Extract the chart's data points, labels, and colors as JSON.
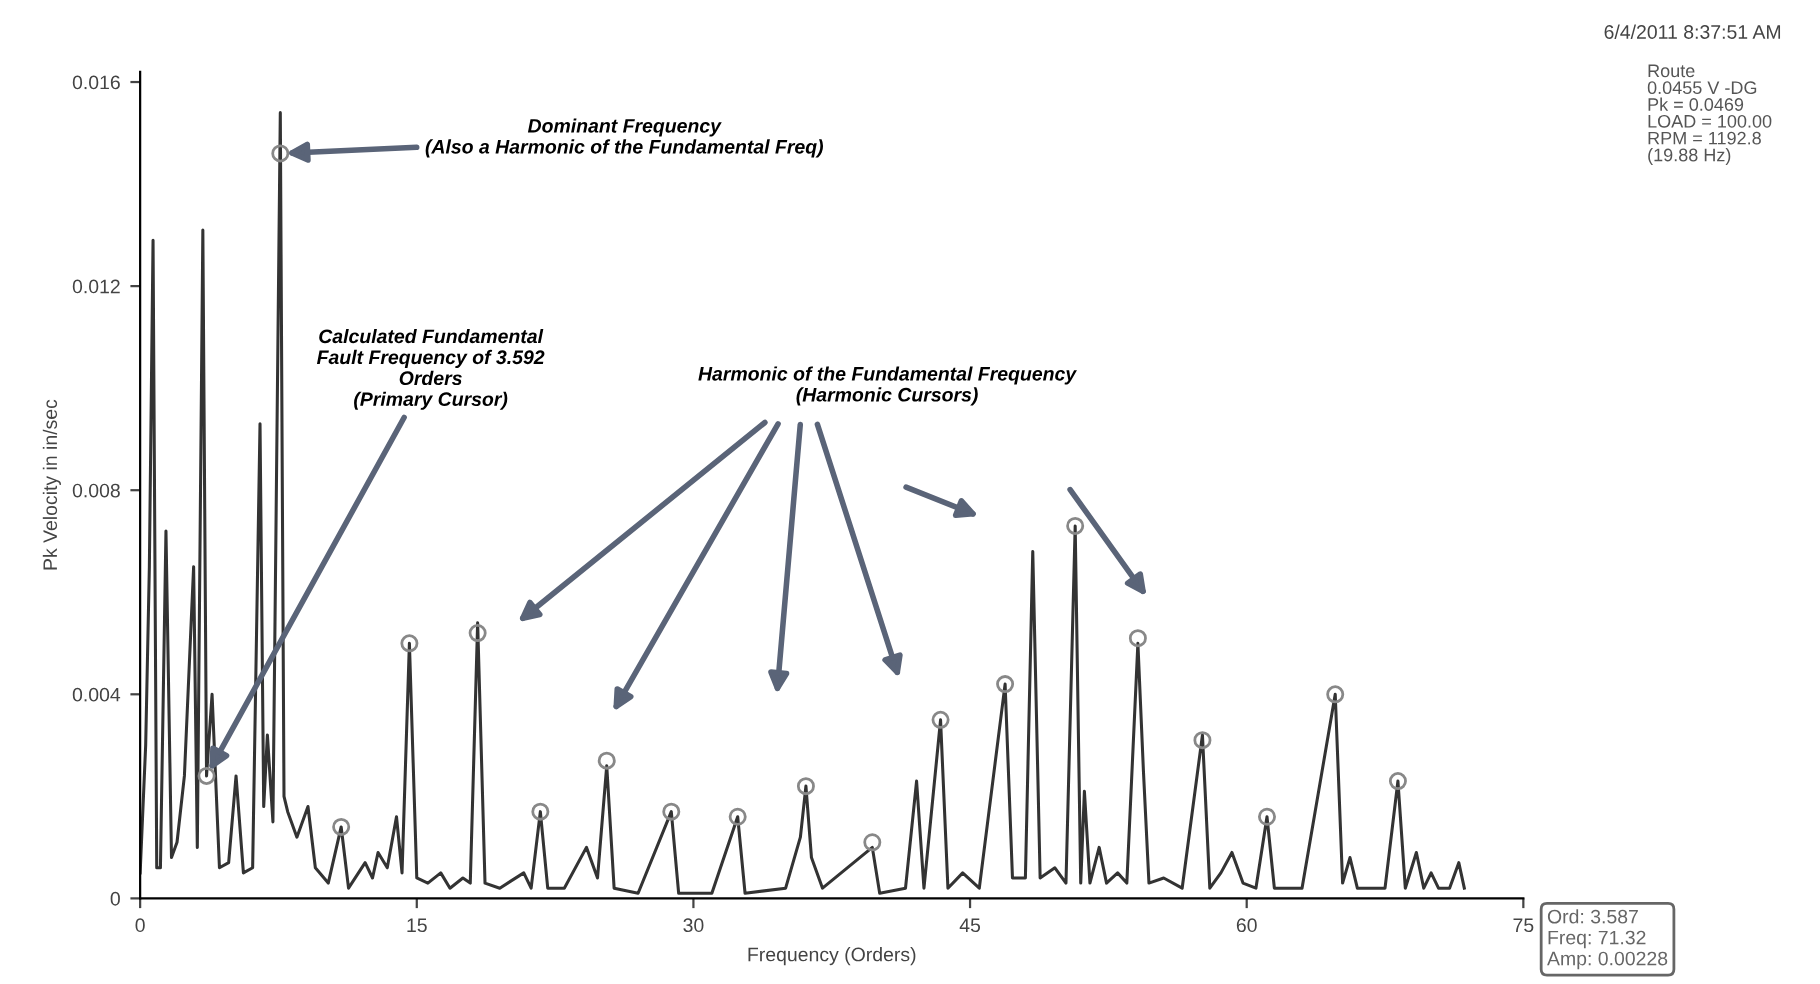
{
  "chart_data": {
    "type": "line",
    "xlabel": "Frequency (Orders)",
    "ylabel": "Pk Velocity in in/sec",
    "xlim": [
      0,
      75
    ],
    "ylim": [
      0,
      0.0162
    ],
    "xticks": [
      0,
      15,
      30,
      45,
      60,
      75
    ],
    "yticks": [
      0,
      0.004,
      0.008,
      0.012,
      0.016
    ],
    "grid": false,
    "series": [
      {
        "color": "#333333",
        "marker": "none",
        "x": [
          0,
          0.3,
          0.5,
          0.7,
          0.9,
          1.1,
          1.4,
          1.7,
          2.0,
          2.4,
          2.9,
          3.1,
          3.4,
          3.6,
          3.9,
          4.3,
          4.8,
          5.2,
          5.6,
          6.1,
          6.5,
          6.7,
          6.9,
          7.2,
          7.6,
          7.8,
          8.0,
          8.5,
          9.1,
          9.5,
          10.2,
          10.9,
          11.3,
          12.2,
          12.6,
          12.9,
          13.4,
          13.9,
          14.2,
          14.6,
          15.0,
          15.6,
          16.3,
          16.8,
          17.5,
          17.9,
          18.3,
          18.7,
          19.5,
          20.8,
          21.2,
          21.7,
          22.1,
          23.0,
          24.2,
          24.8,
          25.3,
          25.7,
          27.0,
          28.8,
          29.2,
          31.0,
          32.4,
          32.8,
          35.0,
          35.8,
          36.1,
          36.4,
          37.0,
          39.7,
          40.1,
          41.5,
          42.1,
          42.5,
          43.4,
          43.8,
          44.6,
          45.5,
          46.9,
          47.3,
          48.0,
          48.4,
          48.8,
          49.6,
          50.2,
          50.7,
          51.0,
          51.2,
          51.5,
          52.0,
          52.4,
          53.0,
          53.5,
          54.1,
          54.4,
          54.7,
          55.5,
          56.5,
          57.6,
          58.0,
          58.6,
          59.2,
          59.8,
          60.5,
          61.1,
          61.5,
          63.0,
          64.8,
          65.2,
          65.6,
          66.0,
          67.5,
          68.2,
          68.6,
          69.2,
          69.6,
          70.0,
          70.4,
          71.0,
          71.5,
          71.8
        ],
        "values": [
          0.0005,
          0.003,
          0.0065,
          0.0129,
          0.0006,
          0.0006,
          0.0072,
          0.0008,
          0.0011,
          0.0024,
          0.0065,
          0.001,
          0.0131,
          0.0024,
          0.004,
          0.0006,
          0.0007,
          0.0024,
          0.0005,
          0.0006,
          0.0093,
          0.0018,
          0.0032,
          0.0015,
          0.0154,
          0.002,
          0.0017,
          0.0012,
          0.0018,
          0.0006,
          0.0003,
          0.0014,
          0.0002,
          0.0007,
          0.0004,
          0.0009,
          0.0006,
          0.0016,
          0.0005,
          0.005,
          0.0004,
          0.0003,
          0.0005,
          0.0002,
          0.0004,
          0.0003,
          0.0054,
          0.0003,
          0.0002,
          0.0005,
          0.0002,
          0.0017,
          0.0002,
          0.0002,
          0.001,
          0.0004,
          0.0026,
          0.0002,
          0.0001,
          0.0017,
          0.0001,
          0.0001,
          0.0016,
          0.0001,
          0.0002,
          0.0012,
          0.0022,
          0.0008,
          0.0002,
          0.001,
          0.0001,
          0.0002,
          0.0023,
          0.0002,
          0.0035,
          0.0002,
          0.0005,
          0.0002,
          0.0042,
          0.0004,
          0.0004,
          0.0068,
          0.0004,
          0.0006,
          0.0003,
          0.0073,
          0.0003,
          0.0021,
          0.0003,
          0.001,
          0.0003,
          0.0005,
          0.0003,
          0.005,
          0.0025,
          0.0003,
          0.0004,
          0.0002,
          0.0032,
          0.0002,
          0.0005,
          0.0009,
          0.0003,
          0.0002,
          0.0016,
          0.0002,
          0.0002,
          0.004,
          0.0003,
          0.0008,
          0.0002,
          0.0002,
          0.0023,
          0.0002,
          0.0009,
          0.0002,
          0.0005,
          0.0002,
          0.0002,
          0.0007,
          0.0002
        ]
      },
      {
        "type": "scatter",
        "color": "#888888",
        "marker": "circle",
        "x": [
          3.6,
          7.6,
          10.9,
          14.6,
          18.3,
          21.7,
          25.3,
          28.8,
          32.4,
          36.1,
          39.7,
          43.4,
          46.9,
          50.7,
          54.1,
          57.6,
          61.1,
          64.8,
          68.2
        ],
        "values": [
          0.0024,
          0.0146,
          0.0014,
          0.005,
          0.0052,
          0.0017,
          0.0027,
          0.0017,
          0.0016,
          0.0022,
          0.0011,
          0.0035,
          0.0042,
          0.0073,
          0.0051,
          0.0031,
          0.0016,
          0.004,
          0.0023
        ]
      }
    ],
    "annotations": [
      {
        "text": "Dominant Frequency\n(Also a Harmonic of the Fundamental Freq)",
        "x": 7.6,
        "y": 0.0146
      },
      {
        "text": "Calculated Fundamental\nFault Frequency of 3.592\nOrders\n(Primary Cursor)",
        "x": 3.6,
        "y": 0.0024
      },
      "Harmonic of the Fundamental Frequency\n(Harmonic Cursors)",
      "6/4/2011 8:37:51 AM",
      "Route\n0.0455 V -DG\nPk = 0.0469\nLOAD = 100.00\nRPM = 1192.8\n(19.88 Hz)",
      "Ord: 3.587\nFreq: 71.32\nAmp: 0.00228"
    ]
  }
}
